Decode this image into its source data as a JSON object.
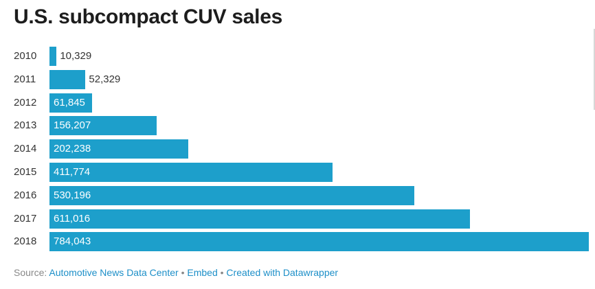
{
  "title": "U.S. subcompact CUV sales",
  "chart_data": {
    "type": "bar",
    "orientation": "horizontal",
    "title": "U.S. subcompact CUV sales",
    "categories": [
      "2010",
      "2011",
      "2012",
      "2013",
      "2014",
      "2015",
      "2016",
      "2017",
      "2018"
    ],
    "values": [
      10329,
      52329,
      61845,
      156207,
      202238,
      411774,
      530196,
      611016,
      784043
    ],
    "value_labels": [
      "10,329",
      "52,329",
      "61,845",
      "156,207",
      "202,238",
      "411,774",
      "530,196",
      "611,016",
      "784,043"
    ],
    "xlim": [
      0,
      784043
    ],
    "grid": false,
    "bar_color": "#1d9fcb"
  },
  "footer": {
    "source_label": "Source:",
    "source_link": "Automotive News Data Center",
    "separator": "•",
    "embed_link": "Embed",
    "created_link": "Created with Datawrapper"
  }
}
